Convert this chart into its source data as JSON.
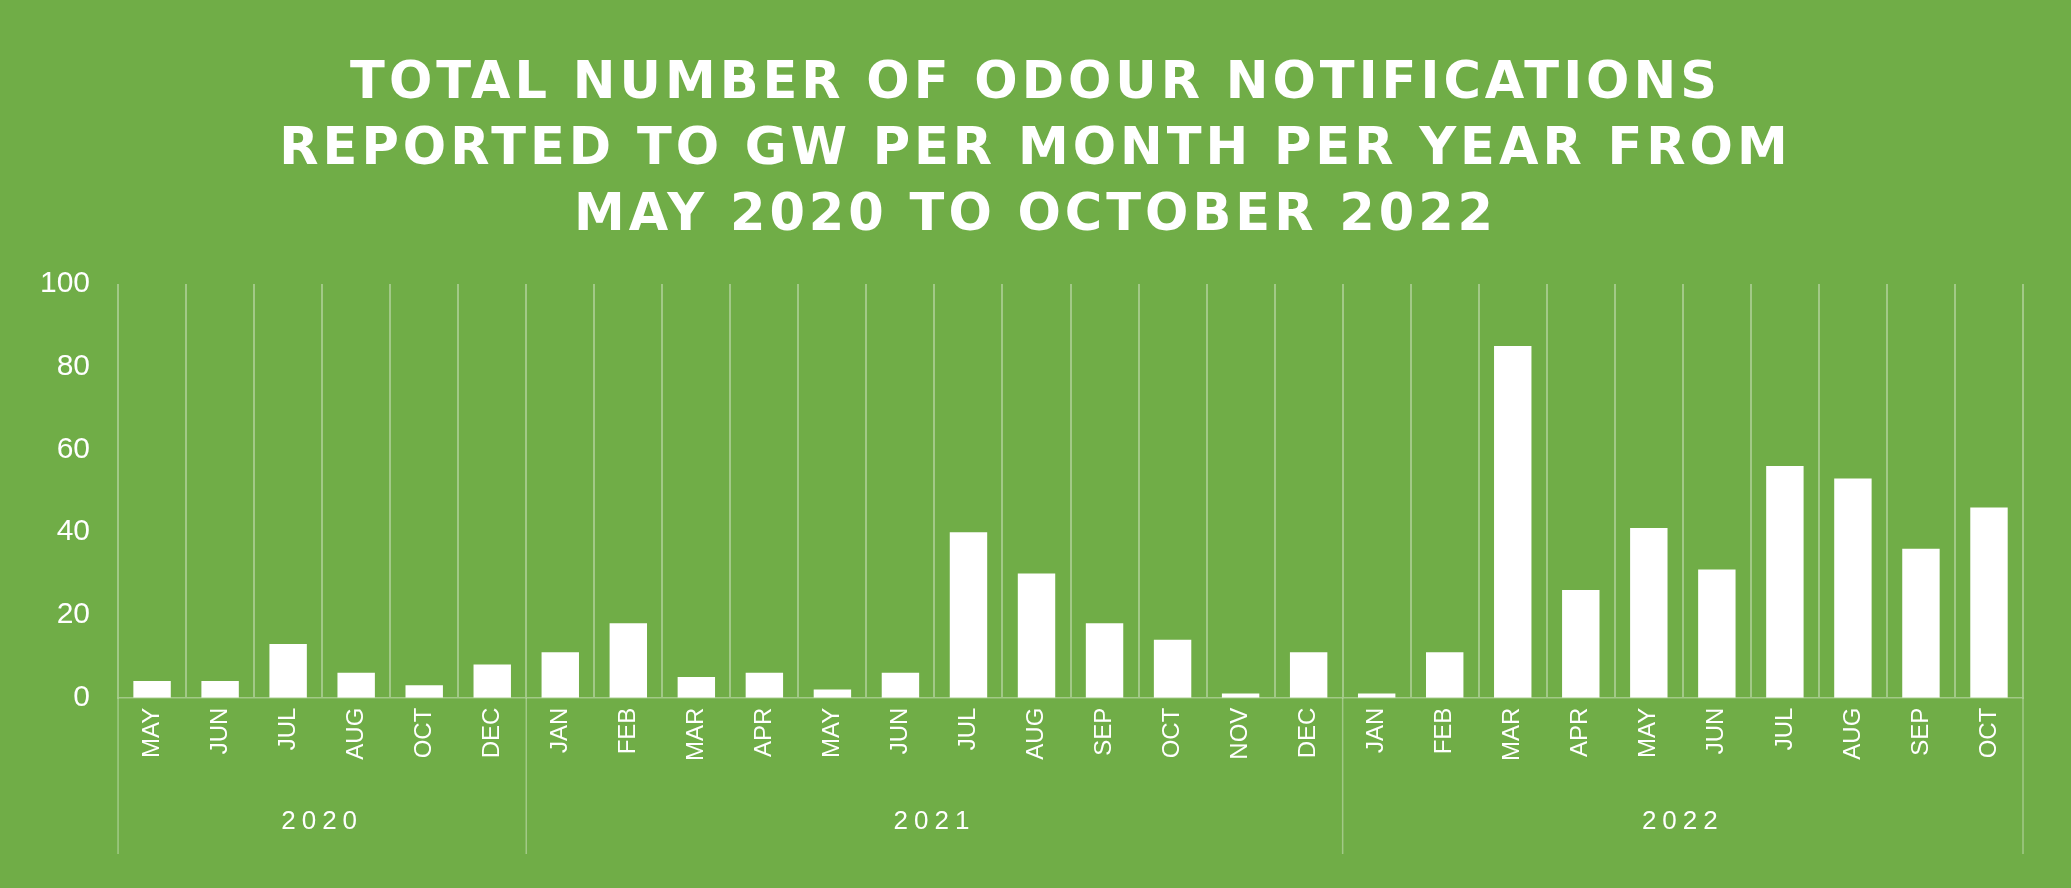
{
  "chart_data": {
    "type": "bar",
    "title": "TOTAL NUMBER OF ODOUR NOTIFICATIONS REPORTED TO GW PER MONTH PER YEAR FROM MAY 2020 TO OCTOBER 2022",
    "categories": [
      "MAY",
      "JUN",
      "JUL",
      "AUG",
      "OCT",
      "DEC",
      "JAN",
      "FEB",
      "MAR",
      "APR",
      "MAY",
      "JUN",
      "JUL",
      "AUG",
      "SEP",
      "OCT",
      "NOV",
      "DEC",
      "JAN",
      "FEB",
      "MAR",
      "APR",
      "MAY",
      "JUN",
      "JUL",
      "AUG",
      "SEP",
      "OCT"
    ],
    "values": [
      4,
      4,
      13,
      6,
      3,
      8,
      11,
      18,
      5,
      6,
      2,
      6,
      40,
      30,
      18,
      14,
      1,
      11,
      1,
      11,
      85,
      26,
      41,
      31,
      56,
      53,
      36,
      46
    ],
    "color": "#ffffff",
    "ylim": [
      0,
      100
    ],
    "yticks": [
      0,
      20,
      40,
      60,
      80,
      100
    ],
    "grid": "x",
    "legend": false,
    "annotations": [
      "2020",
      "2021",
      "2022"
    ]
  }
}
